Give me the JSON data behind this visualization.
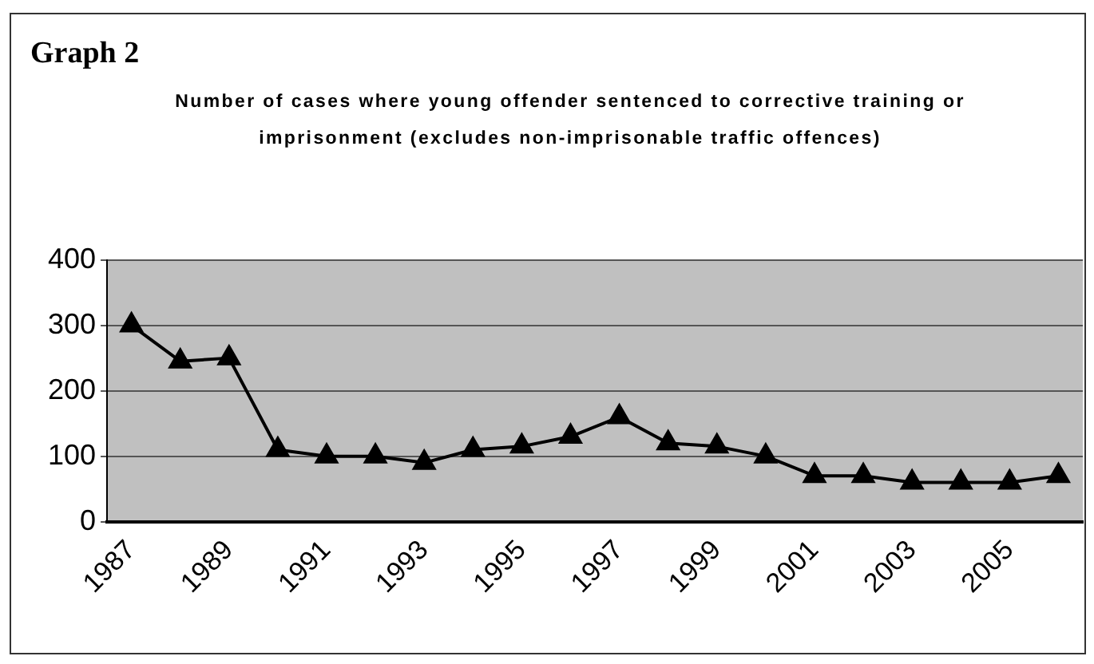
{
  "chart_data": {
    "type": "line",
    "title": "Graph 2",
    "subtitle": "Number of cases where young offender sentenced to corrective training or imprisonment (excludes non-imprisonable traffic offences)",
    "categories": [
      "1987",
      null,
      "1989",
      null,
      "1991",
      null,
      "1993",
      null,
      "1995",
      null,
      "1997",
      null,
      "1999",
      null,
      "2001",
      null,
      "2003",
      null,
      "2005",
      null
    ],
    "series": [
      {
        "color": "#000000",
        "values": [
          300,
          245,
          250,
          110,
          100,
          100,
          90,
          110,
          115,
          130,
          160,
          120,
          115,
          100,
          70,
          70,
          60,
          60,
          60,
          70
        ]
      }
    ],
    "ylim": [
      0,
      400
    ],
    "yticks": [
      0,
      100,
      200,
      300,
      400
    ],
    "grid": "y",
    "marker": "triangle",
    "line_style": "solid",
    "legend": false
  }
}
